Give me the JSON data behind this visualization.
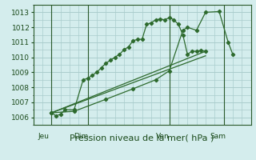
{
  "background_color": "#d4eded",
  "grid_color": "#aacccc",
  "line_color": "#2d6a2d",
  "title": "Pression niveau de la mer( hPa )",
  "ylim": [
    1005.5,
    1013.5
  ],
  "yticks": [
    1006,
    1007,
    1008,
    1009,
    1010,
    1011,
    1012,
    1013
  ],
  "xlim": [
    0,
    24
  ],
  "day_labels": [
    "Jeu",
    "Dim",
    "Ven",
    "Sam"
  ],
  "day_positions": [
    0.5,
    4.5,
    13.5,
    19.5
  ],
  "vline_positions": [
    2,
    6,
    15,
    21
  ],
  "line1_x": [
    2.0,
    2.5,
    3.0,
    3.5,
    4.5,
    5.5,
    6.0,
    6.5,
    7.0,
    7.5,
    8.0,
    8.5,
    9.0,
    9.5,
    10.0,
    10.5,
    11.0,
    11.5,
    12.0,
    12.5,
    13.0,
    13.5,
    14.0,
    14.5,
    15.0,
    15.5,
    16.0,
    16.5,
    17.0,
    17.5,
    18.0,
    18.5,
    19.0
  ],
  "line1_y": [
    1006.3,
    1006.1,
    1006.2,
    1006.5,
    1006.5,
    1008.5,
    1008.6,
    1008.8,
    1009.0,
    1009.3,
    1009.6,
    1009.8,
    1010.0,
    1010.2,
    1010.5,
    1010.7,
    1011.1,
    1011.2,
    1011.2,
    1012.2,
    1012.3,
    1012.5,
    1012.55,
    1012.5,
    1012.65,
    1012.5,
    1012.2,
    1011.5,
    1010.2,
    1010.4,
    1010.4,
    1010.45,
    1010.4
  ],
  "line2_x": [
    2.0,
    19.0
  ],
  "line2_y": [
    1006.3,
    1010.1
  ],
  "line3_x": [
    2.0,
    4.5,
    8.0,
    11.0,
    13.5,
    15.0,
    16.5,
    17.0,
    18.0,
    19.0,
    20.5,
    21.5,
    22.0
  ],
  "line3_y": [
    1006.3,
    1006.4,
    1007.2,
    1007.9,
    1008.5,
    1009.1,
    1011.8,
    1012.0,
    1011.8,
    1013.0,
    1013.05,
    1011.0,
    1010.2
  ],
  "line4_x": [
    2.0,
    19.0
  ],
  "line4_y": [
    1006.3,
    1010.4
  ],
  "marker": "D",
  "markersize": 2.2,
  "title_fontsize": 8,
  "tick_fontsize": 6.5
}
